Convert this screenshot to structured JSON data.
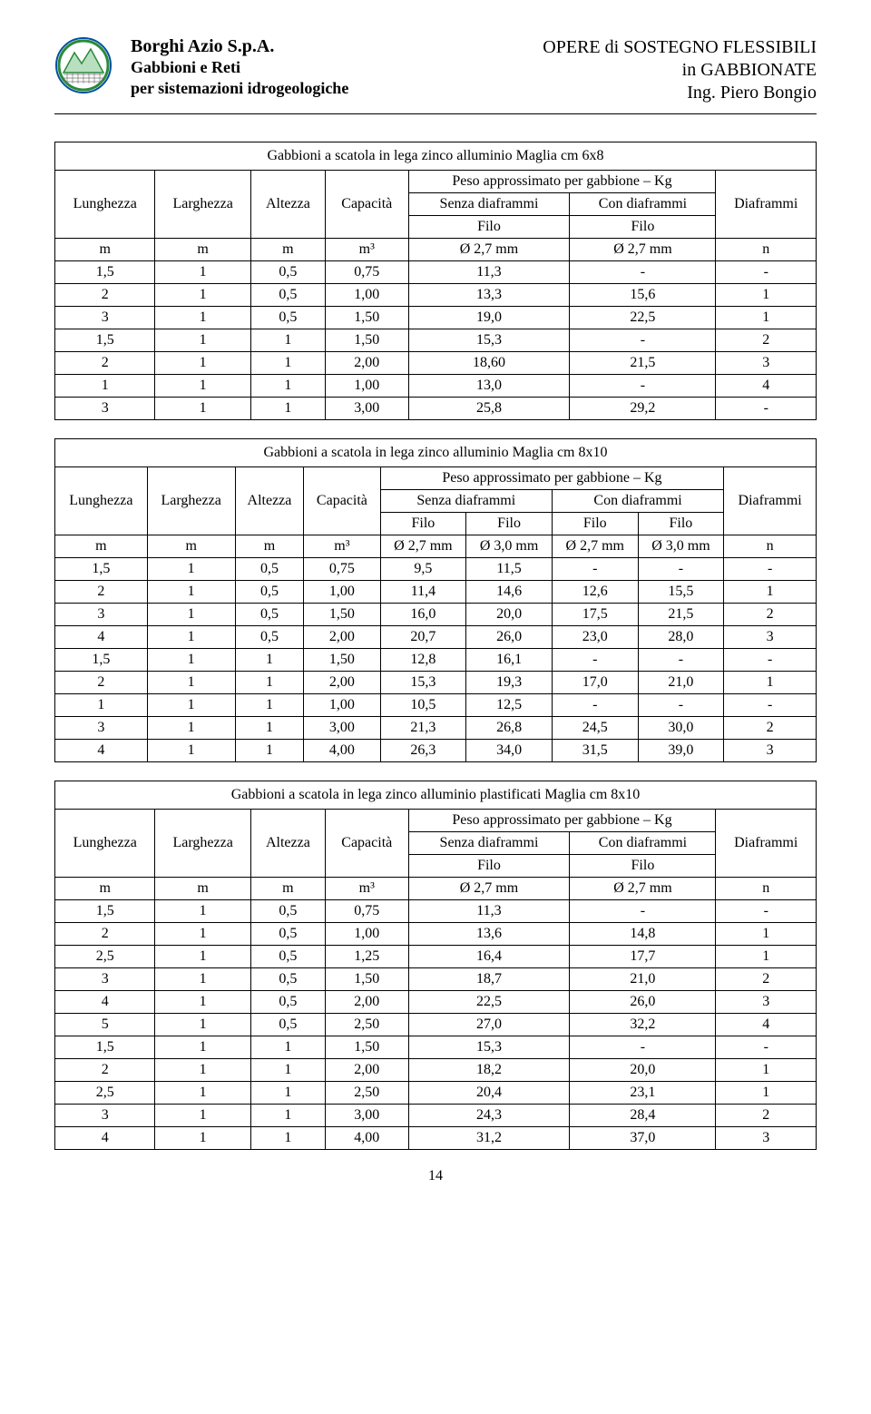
{
  "header": {
    "company_name": "Borghi Azio S.p.A.",
    "company_sub1": "Gabbioni e Reti",
    "company_sub2": "per sistemazioni idrogeologiche",
    "right1": "OPERE di SOSTEGNO FLESSIBILI",
    "right2": "in GABBIONATE",
    "right3": "Ing. Piero Bongio",
    "logo_colors": {
      "outer": "#2a8a3a",
      "mountain_light": "#b8e0c0",
      "grid": "#888888",
      "border": "#0050a0"
    }
  },
  "tables": [
    {
      "title": "Gabbioni a scatola in lega zinco alluminio  Maglia cm 6x8",
      "group_headers": [
        "Lunghezza",
        "Larghezza",
        "Altezza",
        "Capacità",
        "Peso approssimato per gabbione – Kg",
        "Diaframmi"
      ],
      "sub_headers_1": [
        "Senza diaframmi",
        "Con diaframmi"
      ],
      "sub_headers_2": [
        "Filo",
        "Filo"
      ],
      "unit_row": [
        "m",
        "m",
        "m",
        "m³",
        "Ø 2,7 mm",
        "Ø 2,7 mm",
        "n"
      ],
      "rows": [
        [
          "1,5",
          "1",
          "0,5",
          "0,75",
          "11,3",
          "-",
          "-"
        ],
        [
          "2",
          "1",
          "0,5",
          "1,00",
          "13,3",
          "15,6",
          "1"
        ],
        [
          "3",
          "1",
          "0,5",
          "1,50",
          "19,0",
          "22,5",
          "1"
        ],
        [
          "1,5",
          "1",
          "1",
          "1,50",
          "15,3",
          "-",
          "2"
        ],
        [
          "2",
          "1",
          "1",
          "2,00",
          "18,60",
          "21,5",
          "3"
        ],
        [
          "1",
          "1",
          "1",
          "1,00",
          "13,0",
          "-",
          "4"
        ],
        [
          "3",
          "1",
          "1",
          "3,00",
          "25,8",
          "29,2",
          "-"
        ]
      ],
      "wide": false
    },
    {
      "title": "Gabbioni a scatola in lega zinco alluminio Maglia cm 8x10",
      "group_headers": [
        "Lunghezza",
        "Larghezza",
        "Altezza",
        "Capacità",
        "Peso approssimato per gabbione – Kg",
        "Diaframmi"
      ],
      "sub_headers_1": [
        "Senza diaframmi",
        "Con diaframmi"
      ],
      "sub_headers_2": [
        "Filo",
        "Filo",
        "Filo",
        "Filo"
      ],
      "unit_row": [
        "m",
        "m",
        "m",
        "m³",
        "Ø 2,7 mm",
        "Ø 3,0 mm",
        "Ø 2,7 mm",
        "Ø 3,0 mm",
        "n"
      ],
      "rows": [
        [
          "1,5",
          "1",
          "0,5",
          "0,75",
          "9,5",
          "11,5",
          "-",
          "-",
          "-"
        ],
        [
          "2",
          "1",
          "0,5",
          "1,00",
          "11,4",
          "14,6",
          "12,6",
          "15,5",
          "1"
        ],
        [
          "3",
          "1",
          "0,5",
          "1,50",
          "16,0",
          "20,0",
          "17,5",
          "21,5",
          "2"
        ],
        [
          "4",
          "1",
          "0,5",
          "2,00",
          "20,7",
          "26,0",
          "23,0",
          "28,0",
          "3"
        ],
        [
          "1,5",
          "1",
          "1",
          "1,50",
          "12,8",
          "16,1",
          "-",
          "-",
          "-"
        ],
        [
          "2",
          "1",
          "1",
          "2,00",
          "15,3",
          "19,3",
          "17,0",
          "21,0",
          "1"
        ],
        [
          "1",
          "1",
          "1",
          "1,00",
          "10,5",
          "12,5",
          "-",
          "-",
          "-"
        ],
        [
          "3",
          "1",
          "1",
          "3,00",
          "21,3",
          "26,8",
          "24,5",
          "30,0",
          "2"
        ],
        [
          "4",
          "1",
          "1",
          "4,00",
          "26,3",
          "34,0",
          "31,5",
          "39,0",
          "3"
        ]
      ],
      "wide": true
    },
    {
      "title": "Gabbioni a scatola in lega zinco alluminio plastificati  Maglia cm 8x10",
      "group_headers": [
        "Lunghezza",
        "Larghezza",
        "Altezza",
        "Capacità",
        "Peso approssimato per gabbione – Kg",
        "Diaframmi"
      ],
      "sub_headers_1": [
        "Senza diaframmi",
        "Con diaframmi"
      ],
      "sub_headers_2": [
        "Filo",
        "Filo"
      ],
      "unit_row": [
        "m",
        "m",
        "m",
        "m³",
        "Ø 2,7 mm",
        "Ø 2,7 mm",
        "n"
      ],
      "rows": [
        [
          "1,5",
          "1",
          "0,5",
          "0,75",
          "11,3",
          "-",
          "-"
        ],
        [
          "2",
          "1",
          "0,5",
          "1,00",
          "13,6",
          "14,8",
          "1"
        ],
        [
          "2,5",
          "1",
          "0,5",
          "1,25",
          "16,4",
          "17,7",
          "1"
        ],
        [
          "3",
          "1",
          "0,5",
          "1,50",
          "18,7",
          "21,0",
          "2"
        ],
        [
          "4",
          "1",
          "0,5",
          "2,00",
          "22,5",
          "26,0",
          "3"
        ],
        [
          "5",
          "1",
          "0,5",
          "2,50",
          "27,0",
          "32,2",
          "4"
        ],
        [
          "1,5",
          "1",
          "1",
          "1,50",
          "15,3",
          "-",
          "-"
        ],
        [
          "2",
          "1",
          "1",
          "2,00",
          "18,2",
          "20,0",
          "1"
        ],
        [
          "2,5",
          "1",
          "1",
          "2,50",
          "20,4",
          "23,1",
          "1"
        ],
        [
          "3",
          "1",
          "1",
          "3,00",
          "24,3",
          "28,4",
          "2"
        ],
        [
          "4",
          "1",
          "1",
          "4,00",
          "31,2",
          "37,0",
          "3"
        ]
      ],
      "wide": false
    }
  ],
  "page_number": "14"
}
